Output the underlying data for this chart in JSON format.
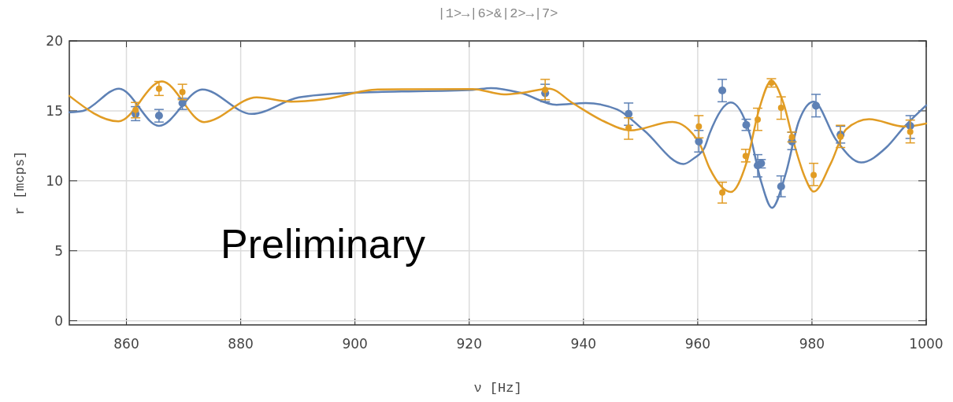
{
  "chart_data": {
    "type": "scatter",
    "title": "|1>→|6>&|2>→|7>",
    "xlabel": "ν [Hz]",
    "ylabel": "r [mcps]",
    "annotations": [
      "Preliminary"
    ],
    "xlim": [
      850,
      1000
    ],
    "ylim": [
      -0.3,
      20
    ],
    "xticks": [
      860,
      880,
      900,
      920,
      940,
      960,
      980,
      1000
    ],
    "yticks": [
      0,
      5,
      10,
      15,
      20
    ],
    "grid": true,
    "series": [
      {
        "type": "line",
        "marker": "none",
        "color": "#5e81b5",
        "x": [
          850,
          852.4,
          858.7,
          865.7,
          873.3,
          881.9,
          890.2,
          899.4,
          904,
          920.6,
          923.8,
          928.9,
          935.3,
          940.4,
          945.9,
          950.6,
          957.5,
          959.3,
          961.2,
          962.1,
          965.8,
          969.0,
          971.1,
          973.0,
          975.4,
          977.7,
          980.3,
          984.2,
          988.6,
          993.0,
          996.2,
          1000
        ],
        "values": [
          14.9,
          15.0,
          16.59,
          13.93,
          16.53,
          14.78,
          15.96,
          16.29,
          16.35,
          16.5,
          16.63,
          16.3,
          15.43,
          15.56,
          15.1,
          13.6,
          11.2,
          11.6,
          12.38,
          13.4,
          15.6,
          13.5,
          9.94,
          8.07,
          10.5,
          14.25,
          15.65,
          12.94,
          11.31,
          12.38,
          13.88,
          15.4
        ]
      },
      {
        "type": "line",
        "marker": "none",
        "color": "#e19c24",
        "x": [
          850,
          858.6,
          866.2,
          873.6,
          882.8,
          888.8,
          894.7,
          904,
          920.6,
          926.1,
          928.9,
          934,
          938.1,
          943.6,
          948.2,
          955.6,
          960.2,
          962.1,
          965.8,
          968.5,
          970.8,
          972.9,
          975.0,
          976.8,
          978.7,
          980.3,
          983.3,
          986.0,
          990.0,
          996.2,
          1000
        ],
        "values": [
          16.07,
          14.25,
          17.1,
          14.2,
          15.97,
          15.66,
          15.84,
          16.53,
          16.56,
          16.18,
          16.27,
          16.59,
          15.56,
          14.25,
          13.6,
          14.21,
          12.75,
          10.88,
          9.2,
          11.25,
          15.19,
          17.15,
          15.56,
          12.75,
          10.32,
          9.23,
          11.25,
          13.69,
          14.4,
          13.88,
          14.1
        ]
      },
      {
        "color": "#5e81b5",
        "x": [
          861.6,
          865.7,
          869.8,
          933.3,
          947.9,
          960.2,
          964.3,
          968.5,
          970.5,
          971.1,
          974.6,
          976.5,
          980.7,
          985.0,
          997.2
        ],
        "values": [
          14.78,
          14.66,
          15.56,
          16.27,
          14.78,
          12.81,
          16.46,
          14.0,
          11.1,
          11.25,
          9.6,
          12.81,
          15.37,
          13.3,
          13.93
        ],
        "errors": [
          [
            14.3,
            15.3
          ],
          [
            14.2,
            15.1
          ],
          [
            15.1,
            15.9
          ],
          [
            15.65,
            16.9
          ],
          [
            13.97,
            15.56
          ],
          [
            12.06,
            13.6
          ],
          [
            15.65,
            17.25
          ],
          [
            13.6,
            14.4
          ],
          [
            10.28,
            11.87
          ],
          [
            10.92,
            11.52
          ],
          [
            8.86,
            10.35
          ],
          [
            12.23,
            13.47
          ],
          [
            14.57,
            16.18
          ],
          [
            12.7,
            13.9
          ],
          [
            13.03,
            14.66
          ]
        ]
      },
      {
        "color": "#e19c24",
        "x": [
          861.6,
          865.7,
          869.8,
          933.3,
          947.9,
          960.2,
          964.3,
          968.4,
          970.5,
          972.9,
          974.6,
          976.5,
          980.3,
          985.0,
          997.2
        ],
        "values": [
          15.06,
          16.59,
          16.35,
          16.5,
          13.78,
          13.88,
          9.16,
          11.78,
          14.38,
          17.0,
          15.22,
          13.13,
          10.41,
          13.16,
          13.5
        ],
        "errors": [
          [
            14.5,
            15.6
          ],
          [
            16.1,
            17.1
          ],
          [
            15.8,
            16.9
          ],
          [
            15.8,
            17.25
          ],
          [
            12.97,
            14.5
          ],
          [
            13.07,
            14.66
          ],
          [
            8.41,
            9.9
          ],
          [
            11.35,
            12.25
          ],
          [
            13.6,
            15.19
          ],
          [
            16.7,
            17.3
          ],
          [
            14.4,
            16.0
          ],
          [
            12.78,
            13.48
          ],
          [
            9.66,
            11.25
          ],
          [
            12.38,
            13.97
          ],
          [
            12.71,
            14.34
          ]
        ]
      }
    ]
  }
}
